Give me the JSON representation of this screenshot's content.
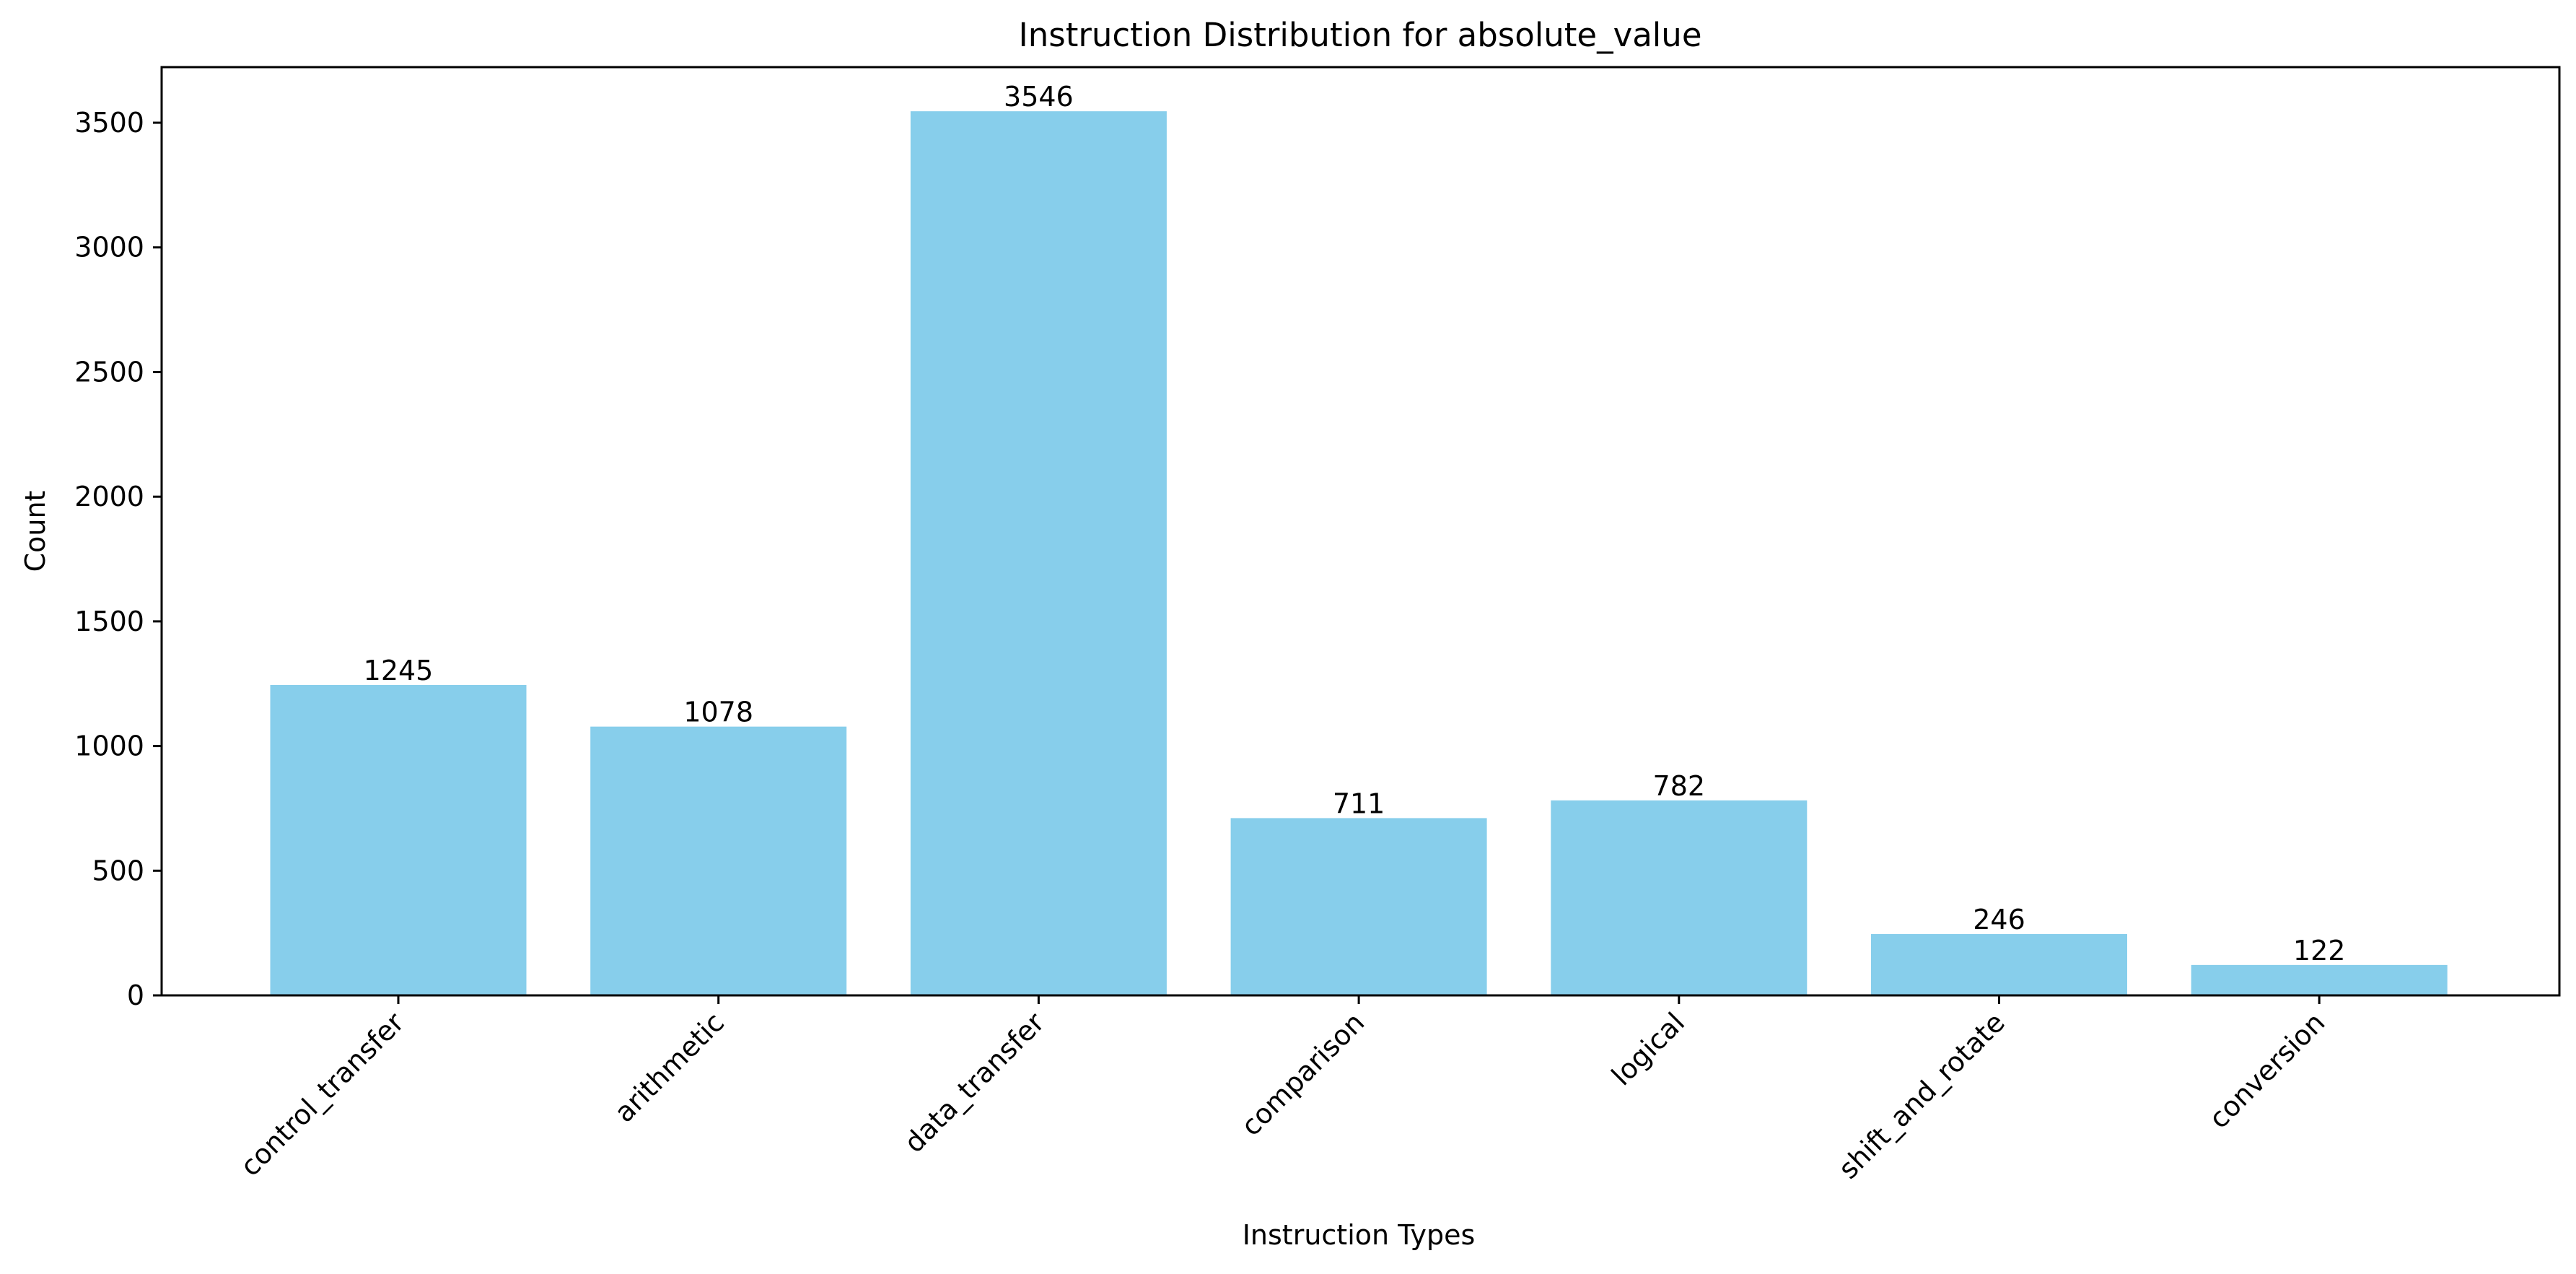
{
  "chart_data": {
    "type": "bar",
    "title": "Instruction Distribution for absolute_value",
    "xlabel": "Instruction Types",
    "ylabel": "Count",
    "categories": [
      "control_transfer",
      "arithmetic",
      "data_transfer",
      "comparison",
      "logical",
      "shift_and_rotate",
      "conversion"
    ],
    "values": [
      1245,
      1078,
      3546,
      711,
      782,
      246,
      122
    ],
    "data_labels": [
      "1245",
      "1078",
      "3546",
      "711",
      "782",
      "246",
      "122"
    ],
    "ylim": [
      0,
      3723
    ],
    "yticks": [
      0,
      500,
      1000,
      1500,
      2000,
      2500,
      3000,
      3500
    ],
    "ytick_labels": [
      "0",
      "500",
      "1000",
      "1500",
      "2000",
      "2500",
      "3000",
      "3500"
    ],
    "grid": false,
    "colors": {
      "bar": "#87ceeb",
      "axis": "#000000",
      "text": "#000000"
    }
  }
}
